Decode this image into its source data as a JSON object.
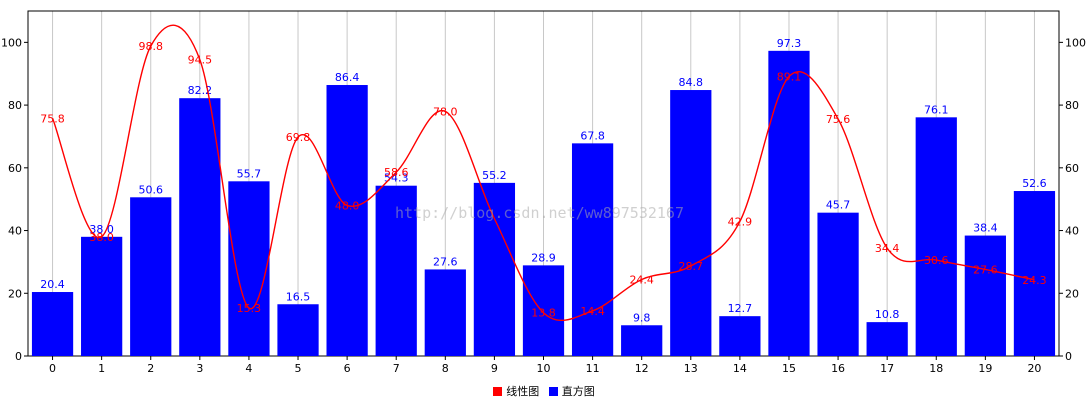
{
  "watermark": "http://blog.csdn.net/ww897532167",
  "chart_data": {
    "type": "bar",
    "categories": [
      "0",
      "1",
      "2",
      "3",
      "4",
      "5",
      "6",
      "7",
      "8",
      "9",
      "10",
      "11",
      "12",
      "13",
      "14",
      "15",
      "16",
      "17",
      "18",
      "19",
      "20"
    ],
    "ylim": [
      0,
      110
    ],
    "yticks": [
      0,
      20,
      40,
      60,
      80,
      100
    ],
    "grid": "vertical",
    "legend_position": "bottom-center",
    "series": [
      {
        "name": "线性图",
        "type": "line",
        "color": "#ff0000",
        "smooth": true,
        "values": [
          75.8,
          38.0,
          98.8,
          94.5,
          15.3,
          69.8,
          48.0,
          58.6,
          78.0,
          43.8,
          13.8,
          14.4,
          24.4,
          28.7,
          42.9,
          89.1,
          75.6,
          34.4,
          30.6,
          27.6,
          24.3
        ],
        "labels": [
          "75.8",
          "38.0",
          "98.8",
          "94.5",
          "15.3",
          "69.8",
          "48.0",
          "58.6",
          "78.0",
          "",
          "13.8",
          "14.4",
          "24.4",
          "28.7",
          "42.9",
          "89.1",
          "75.6",
          "34.4",
          "30.6",
          "27.6",
          "24.3"
        ]
      },
      {
        "name": "直方图",
        "type": "bar",
        "color": "#0000ff",
        "values": [
          20.4,
          38.0,
          50.6,
          82.2,
          55.7,
          16.5,
          86.4,
          54.3,
          27.6,
          55.2,
          28.9,
          67.8,
          9.8,
          84.8,
          12.7,
          97.3,
          45.7,
          10.8,
          76.1,
          38.4,
          52.6
        ],
        "labels": [
          "20.4",
          "38.0",
          "50.6",
          "82.2",
          "55.7",
          "16.5",
          "86.4",
          "54.3",
          "27.6",
          "55.2",
          "28.9",
          "67.8",
          "9.8",
          "84.8",
          "12.7",
          "97.3",
          "45.7",
          "10.8",
          "76.1",
          "38.4",
          "52.6"
        ]
      }
    ]
  }
}
